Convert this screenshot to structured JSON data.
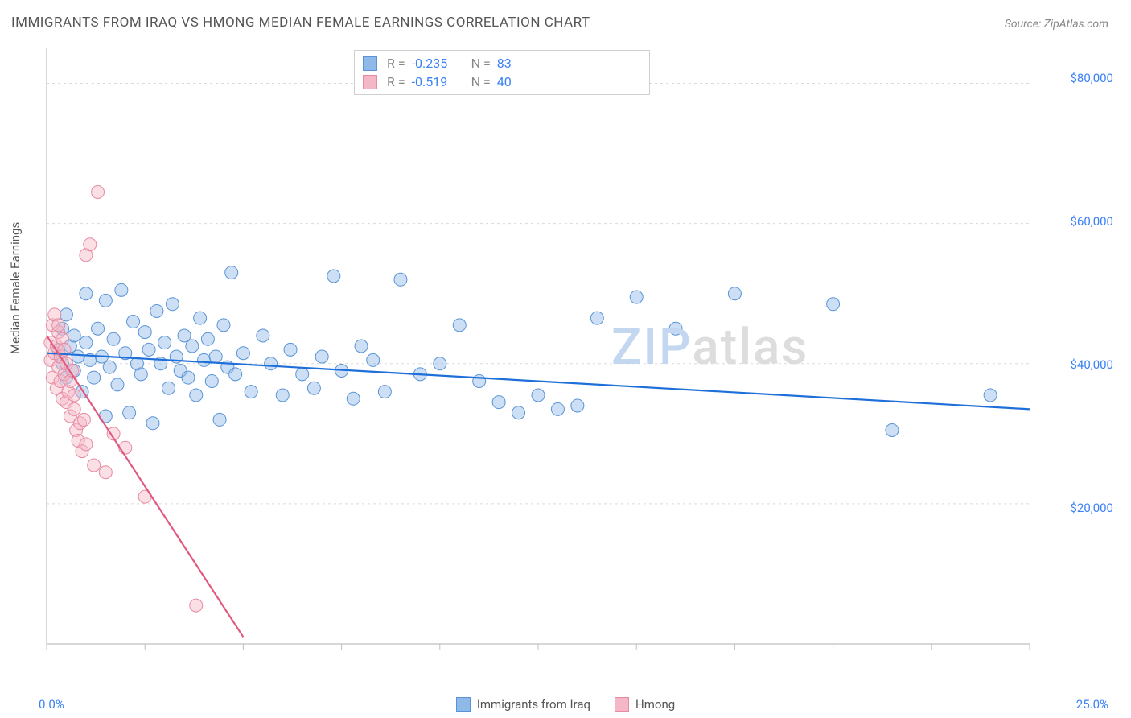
{
  "title": "IMMIGRANTS FROM IRAQ VS HMONG MEDIAN FEMALE EARNINGS CORRELATION CHART",
  "source_prefix": "Source: ",
  "source": "ZipAtlas.com",
  "y_axis_label": "Median Female Earnings",
  "x_start": "0.0%",
  "x_end": "25.0%",
  "watermark_a": "ZIP",
  "watermark_b": "atlas",
  "chart": {
    "type": "scatter",
    "xlim": [
      0,
      25
    ],
    "ylim": [
      0,
      85000
    ],
    "x_ticks": [
      0,
      2.5,
      5,
      7.5,
      10,
      12.5,
      15,
      17.5,
      20,
      22.5,
      25
    ],
    "y_ticks": [
      20000,
      40000,
      60000,
      80000
    ],
    "y_tick_labels": [
      "$20,000",
      "$40,000",
      "$60,000",
      "$80,000"
    ],
    "grid_color": "#d9d9d9",
    "axis_color": "#bfbfbf",
    "background_color": "#ffffff",
    "marker_radius": 8,
    "marker_opacity": 0.45,
    "series": [
      {
        "name": "Immigrants from Iraq",
        "color": "#8fb9e8",
        "stroke": "#5a94d6",
        "r": -0.235,
        "n": 83,
        "regression": {
          "x1": 0,
          "y1": 41500,
          "x2": 25,
          "y2": 33500,
          "color": "#1e6fd9",
          "width": 2.2
        },
        "points": [
          [
            0.3,
            42000
          ],
          [
            0.4,
            45000
          ],
          [
            0.4,
            40000
          ],
          [
            0.5,
            38000
          ],
          [
            0.5,
            47000
          ],
          [
            0.6,
            42500
          ],
          [
            0.7,
            44000
          ],
          [
            0.7,
            39000
          ],
          [
            0.8,
            41000
          ],
          [
            0.9,
            36000
          ],
          [
            1.0,
            50000
          ],
          [
            1.0,
            43000
          ],
          [
            1.1,
            40500
          ],
          [
            1.2,
            38000
          ],
          [
            1.3,
            45000
          ],
          [
            1.4,
            41000
          ],
          [
            1.5,
            32500
          ],
          [
            1.5,
            49000
          ],
          [
            1.6,
            39500
          ],
          [
            1.7,
            43500
          ],
          [
            1.8,
            37000
          ],
          [
            1.9,
            50500
          ],
          [
            2.0,
            41500
          ],
          [
            2.1,
            33000
          ],
          [
            2.2,
            46000
          ],
          [
            2.3,
            40000
          ],
          [
            2.4,
            38500
          ],
          [
            2.5,
            44500
          ],
          [
            2.6,
            42000
          ],
          [
            2.7,
            31500
          ],
          [
            2.8,
            47500
          ],
          [
            2.9,
            40000
          ],
          [
            3.0,
            43000
          ],
          [
            3.1,
            36500
          ],
          [
            3.2,
            48500
          ],
          [
            3.3,
            41000
          ],
          [
            3.4,
            39000
          ],
          [
            3.5,
            44000
          ],
          [
            3.6,
            38000
          ],
          [
            3.7,
            42500
          ],
          [
            3.8,
            35500
          ],
          [
            3.9,
            46500
          ],
          [
            4.0,
            40500
          ],
          [
            4.1,
            43500
          ],
          [
            4.2,
            37500
          ],
          [
            4.3,
            41000
          ],
          [
            4.4,
            32000
          ],
          [
            4.5,
            45500
          ],
          [
            4.6,
            39500
          ],
          [
            4.7,
            53000
          ],
          [
            4.8,
            38500
          ],
          [
            5.0,
            41500
          ],
          [
            5.2,
            36000
          ],
          [
            5.5,
            44000
          ],
          [
            5.7,
            40000
          ],
          [
            6.0,
            35500
          ],
          [
            6.2,
            42000
          ],
          [
            6.5,
            38500
          ],
          [
            6.8,
            36500
          ],
          [
            7.0,
            41000
          ],
          [
            7.3,
            52500
          ],
          [
            7.5,
            39000
          ],
          [
            7.8,
            35000
          ],
          [
            8.0,
            42500
          ],
          [
            8.3,
            40500
          ],
          [
            8.6,
            36000
          ],
          [
            9.0,
            52000
          ],
          [
            9.5,
            38500
          ],
          [
            10.0,
            40000
          ],
          [
            10.5,
            45500
          ],
          [
            11.0,
            37500
          ],
          [
            11.5,
            34500
          ],
          [
            12.0,
            33000
          ],
          [
            12.5,
            35500
          ],
          [
            13.0,
            33500
          ],
          [
            13.5,
            34000
          ],
          [
            14.0,
            46500
          ],
          [
            15.0,
            49500
          ],
          [
            16.0,
            45000
          ],
          [
            17.5,
            50000
          ],
          [
            20.0,
            48500
          ],
          [
            21.5,
            30500
          ],
          [
            24.0,
            35500
          ]
        ]
      },
      {
        "name": "Hmong",
        "color": "#f4b7c6",
        "stroke": "#e88aa3",
        "r": -0.519,
        "n": 40,
        "regression": {
          "x1": 0,
          "y1": 44000,
          "x2": 5,
          "y2": 1000,
          "color": "#e05a7f",
          "width": 2.2
        },
        "points": [
          [
            0.1,
            43000
          ],
          [
            0.1,
            40500
          ],
          [
            0.15,
            45500
          ],
          [
            0.15,
            38000
          ],
          [
            0.2,
            47000
          ],
          [
            0.2,
            41500
          ],
          [
            0.25,
            36500
          ],
          [
            0.25,
            42500
          ],
          [
            0.3,
            39500
          ],
          [
            0.3,
            44500
          ],
          [
            0.35,
            37500
          ],
          [
            0.35,
            41000
          ],
          [
            0.4,
            35000
          ],
          [
            0.4,
            43500
          ],
          [
            0.45,
            38500
          ],
          [
            0.45,
            42000
          ],
          [
            0.5,
            34500
          ],
          [
            0.5,
            40000
          ],
          [
            0.55,
            36000
          ],
          [
            0.6,
            32500
          ],
          [
            0.6,
            37500
          ],
          [
            0.65,
            39000
          ],
          [
            0.7,
            33500
          ],
          [
            0.7,
            35500
          ],
          [
            0.75,
            30500
          ],
          [
            0.8,
            29000
          ],
          [
            0.85,
            31500
          ],
          [
            0.9,
            27500
          ],
          [
            0.95,
            32000
          ],
          [
            1.0,
            28500
          ],
          [
            1.0,
            55500
          ],
          [
            1.1,
            57000
          ],
          [
            1.2,
            25500
          ],
          [
            1.3,
            64500
          ],
          [
            1.5,
            24500
          ],
          [
            1.7,
            30000
          ],
          [
            2.0,
            28000
          ],
          [
            2.5,
            21000
          ],
          [
            3.8,
            5500
          ],
          [
            0.3,
            45500
          ]
        ]
      }
    ]
  },
  "stats_box": {
    "rows": [
      {
        "r_label": "R =",
        "r_val": "-0.235",
        "n_label": "N =",
        "n_val": "83"
      },
      {
        "r_label": "R =",
        "r_val": "-0.519",
        "n_label": "N =",
        "n_val": "40"
      }
    ]
  },
  "bottom_legend": [
    "Immigrants from Iraq",
    "Hmong"
  ]
}
